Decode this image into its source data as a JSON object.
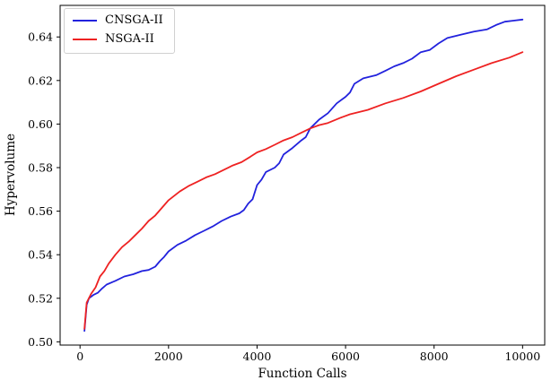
{
  "chart_data": {
    "type": "line",
    "title": "",
    "xlabel": "Function Calls",
    "ylabel": "Hypervolume",
    "grid": false,
    "legend_position": "upper left",
    "xlim": [
      -450,
      10500
    ],
    "ylim": [
      0.4985,
      0.6545
    ],
    "xticks": [
      0,
      2000,
      4000,
      6000,
      8000,
      10000
    ],
    "xtick_labels": [
      "0",
      "2000",
      "4000",
      "6000",
      "8000",
      "10000"
    ],
    "yticks": [
      0.5,
      0.52,
      0.54,
      0.56,
      0.58,
      0.6,
      0.62,
      0.64
    ],
    "ytick_labels": [
      "0.50",
      "0.52",
      "0.54",
      "0.56",
      "0.58",
      "0.60",
      "0.62",
      "0.64"
    ],
    "series": [
      {
        "name": "CNSGA-II",
        "color": "#2222dd",
        "x": [
          100,
          150,
          200,
          300,
          400,
          500,
          600,
          800,
          1000,
          1200,
          1400,
          1550,
          1700,
          1800,
          1900,
          2000,
          2200,
          2400,
          2600,
          2800,
          3000,
          3200,
          3400,
          3600,
          3700,
          3800,
          3900,
          4000,
          4100,
          4200,
          4400,
          4500,
          4600,
          4800,
          5000,
          5100,
          5200,
          5400,
          5600,
          5800,
          6000,
          6100,
          6200,
          6400,
          6700,
          6900,
          7100,
          7300,
          7500,
          7700,
          7900,
          8100,
          8300,
          8600,
          8900,
          9200,
          9400,
          9600,
          9800,
          10000
        ],
        "y": [
          0.505,
          0.517,
          0.52,
          0.5215,
          0.5225,
          0.5245,
          0.5263,
          0.528,
          0.53,
          0.531,
          0.5325,
          0.533,
          0.5345,
          0.537,
          0.539,
          0.5415,
          0.5445,
          0.5465,
          0.549,
          0.551,
          0.553,
          0.5555,
          0.5575,
          0.559,
          0.5605,
          0.5635,
          0.5655,
          0.572,
          0.5745,
          0.578,
          0.58,
          0.582,
          0.586,
          0.589,
          0.5925,
          0.594,
          0.598,
          0.602,
          0.605,
          0.6095,
          0.6125,
          0.6145,
          0.6185,
          0.621,
          0.6225,
          0.6245,
          0.6265,
          0.628,
          0.63,
          0.633,
          0.634,
          0.637,
          0.6395,
          0.641,
          0.6425,
          0.6435,
          0.6455,
          0.647,
          0.6475,
          0.648
        ]
      },
      {
        "name": "NSGA-II",
        "color": "#ee2222",
        "x": [
          100,
          150,
          250,
          350,
          450,
          550,
          650,
          800,
          950,
          1100,
          1250,
          1400,
          1550,
          1700,
          1850,
          2000,
          2250,
          2450,
          2650,
          2850,
          3050,
          3250,
          3450,
          3650,
          3850,
          4000,
          4200,
          4400,
          4600,
          4800,
          5000,
          5200,
          5400,
          5600,
          5900,
          6100,
          6500,
          6900,
          7300,
          7700,
          8100,
          8500,
          8900,
          9300,
          9700,
          10000
        ],
        "y": [
          0.506,
          0.518,
          0.522,
          0.525,
          0.53,
          0.5325,
          0.536,
          0.54,
          0.5435,
          0.546,
          0.549,
          0.552,
          0.5555,
          0.558,
          0.5615,
          0.565,
          0.569,
          0.5715,
          0.5735,
          0.5755,
          0.577,
          0.579,
          0.581,
          0.5825,
          0.585,
          0.587,
          0.5885,
          0.5905,
          0.5925,
          0.594,
          0.596,
          0.598,
          0.5995,
          0.6005,
          0.603,
          0.6045,
          0.6065,
          0.6095,
          0.612,
          0.615,
          0.6185,
          0.622,
          0.625,
          0.628,
          0.6305,
          0.633
        ]
      }
    ]
  }
}
